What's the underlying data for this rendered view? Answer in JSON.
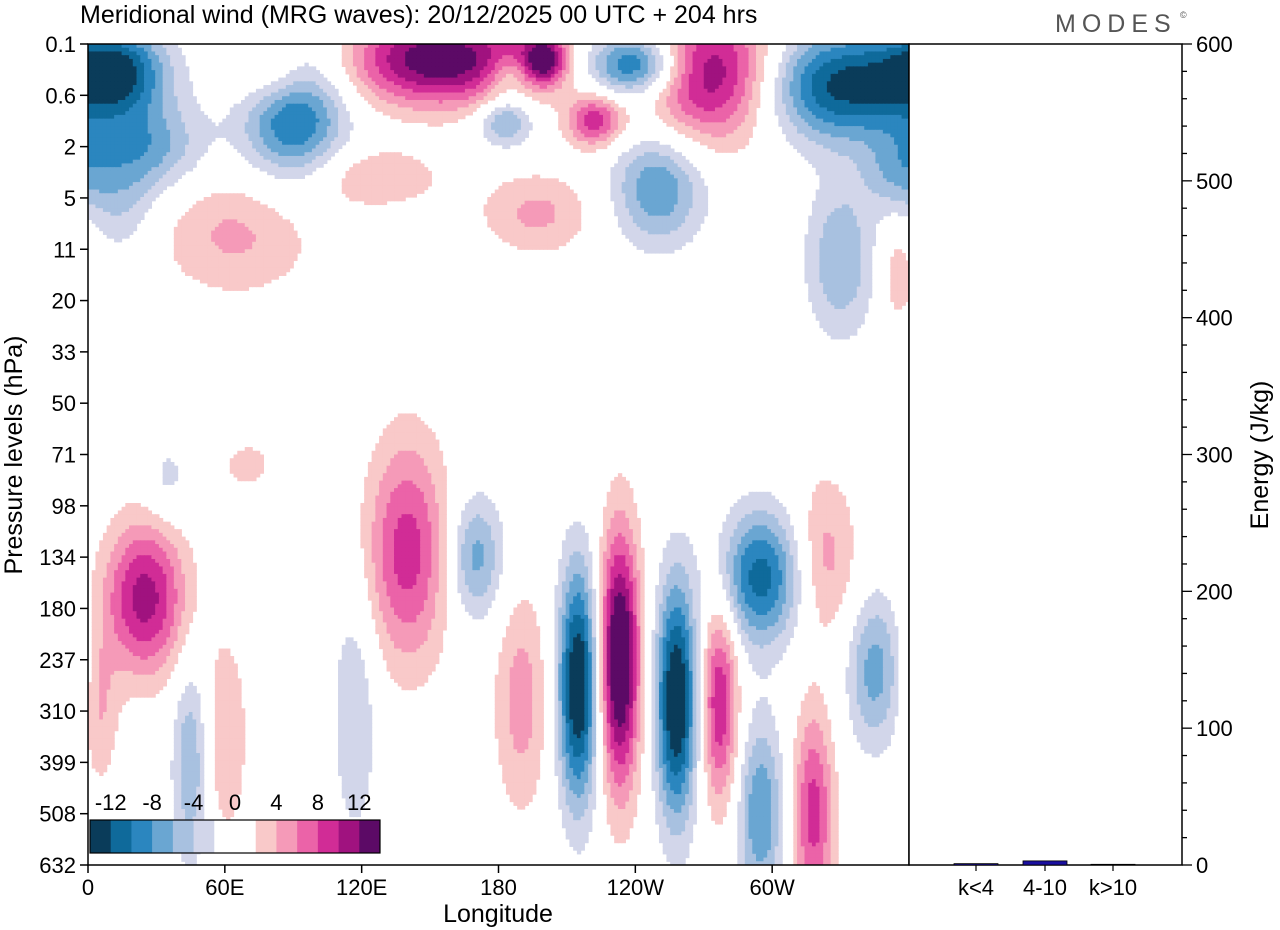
{
  "chart_data": {
    "type": "contour",
    "title": "Meridional wind (MRG waves):  20/12/2025  00 UTC  + 204 hrs",
    "brand": "MODES",
    "brand_mark": "©",
    "xlabel": "Longitude",
    "ylabel": "Pressure levels (hPa)",
    "x_ticks": [
      "0",
      "60E",
      "120E",
      "180",
      "120W",
      "60W"
    ],
    "x_tick_degrees": [
      0,
      60,
      120,
      180,
      240,
      300
    ],
    "xlim": [
      0,
      360
    ],
    "y_ticks": [
      "0.1",
      "0.6",
      "2",
      "5",
      "11",
      "20",
      "33",
      "50",
      "71",
      "98",
      "134",
      "180",
      "237",
      "310",
      "399",
      "508",
      "632"
    ],
    "colorbar": {
      "levels": [
        -12,
        -8,
        -4,
        0,
        4,
        8,
        12
      ],
      "labels": [
        "-12",
        "-8",
        "-4",
        "0",
        "4",
        "8",
        "12"
      ],
      "colors": [
        "#0a3c5a",
        "#0f6a9b",
        "#2b86bf",
        "#6aa6d2",
        "#a8c1e0",
        "#d2d6ea",
        "#ffffff",
        "#ffffff",
        "#f9c9c9",
        "#f59ab8",
        "#eb63a8",
        "#d12c96",
        "#a0127f",
        "#5c0a66"
      ]
    },
    "features": [
      {
        "lon": 155,
        "level": 0.3,
        "lon_width": 42,
        "level_width": 0.9,
        "value": 14
      },
      {
        "lon": 275,
        "level": 0.6,
        "lon_width": 30,
        "level_width": 1.3,
        "value": 13
      },
      {
        "lon": 85,
        "level": 0.55,
        "lon_width": 20,
        "level_width": 0.8,
        "value": 10
      },
      {
        "lon": 200,
        "level": 0.3,
        "lon_width": 10,
        "level_width": 0.5,
        "value": 11
      },
      {
        "lon": 222,
        "level": 1.5,
        "lon_width": 12,
        "level_width": 0.5,
        "value": 9
      },
      {
        "lon": 65,
        "level": 3.7,
        "lon_width": 35,
        "level_width": 1.2,
        "value": 4.5
      },
      {
        "lon": 125,
        "level": 2.6,
        "lon_width": 30,
        "level_width": 0.6,
        "value": 4
      },
      {
        "lon": 197,
        "level": 3.3,
        "lon_width": 25,
        "level_width": 0.8,
        "value": 4.5
      },
      {
        "lon": 12,
        "level": 0.5,
        "lon_width": 22,
        "level_width": 0.8,
        "value": -11
      },
      {
        "lon": 90,
        "level": 1.0,
        "lon_width": 22,
        "level_width": 1.5,
        "value": -14
      },
      {
        "lon": 330,
        "level": 0.8,
        "lon_width": 40,
        "level_width": 1.1,
        "value": -13
      },
      {
        "lon": 240,
        "level": 0.4,
        "lon_width": 20,
        "level_width": 0.6,
        "value": -12
      },
      {
        "lon": 183,
        "level": 1.5,
        "lon_width": 12,
        "level_width": 0.5,
        "value": -7
      },
      {
        "lon": 185,
        "level": 0.6,
        "lon_width": 10,
        "level_width": 0.4,
        "value": -4
      },
      {
        "lon": 25,
        "level": 2.0,
        "lon_width": 25,
        "level_width": 0.9,
        "value": -7
      },
      {
        "lon": 250,
        "level": 2.8,
        "lon_width": 20,
        "level_width": 1.1,
        "value": -8
      },
      {
        "lon": 330,
        "level": 4.2,
        "lon_width": 15,
        "level_width": 1.5,
        "value": -6
      },
      {
        "lon": 355,
        "level": 2.5,
        "lon_width": 15,
        "level_width": 0.8,
        "value": -5
      },
      {
        "lon": 15,
        "level": 3.2,
        "lon_width": 15,
        "level_width": 1.0,
        "value": -3.5
      },
      {
        "lon": 355,
        "level": 4.5,
        "lon_width": 8,
        "level_width": 1.0,
        "value": 3.5
      },
      {
        "lon": 25,
        "level": 10.8,
        "lon_width": 18,
        "level_width": 1.5,
        "value": 11
      },
      {
        "lon": 140,
        "level": 9.9,
        "lon_width": 18,
        "level_width": 2.2,
        "value": 9
      },
      {
        "lon": 190,
        "level": 12.8,
        "lon_width": 12,
        "level_width": 2.2,
        "value": 5
      },
      {
        "lon": 215,
        "level": 12.5,
        "lon_width": 9,
        "level_width": 2.3,
        "value": -15
      },
      {
        "lon": 233,
        "level": 12.0,
        "lon_width": 9,
        "level_width": 2.5,
        "value": 16
      },
      {
        "lon": 258,
        "level": 12.8,
        "lon_width": 9,
        "level_width": 2.3,
        "value": -15
      },
      {
        "lon": 277,
        "level": 12.8,
        "lon_width": 8,
        "level_width": 2.0,
        "value": 10
      },
      {
        "lon": 295,
        "level": 10.4,
        "lon_width": 18,
        "level_width": 1.3,
        "value": -11
      },
      {
        "lon": 323,
        "level": 10.0,
        "lon_width": 14,
        "level_width": 1.6,
        "value": 5
      },
      {
        "lon": 345,
        "level": 12.2,
        "lon_width": 12,
        "level_width": 1.5,
        "value": -7
      },
      {
        "lon": 170,
        "level": 10.0,
        "lon_width": 12,
        "level_width": 1.2,
        "value": -7
      },
      {
        "lon": 60,
        "level": 13.5,
        "lon_width": 10,
        "level_width": 2.0,
        "value": 4
      },
      {
        "lon": 45,
        "level": 14.0,
        "lon_width": 8,
        "level_width": 2.0,
        "value": -6
      },
      {
        "lon": 117,
        "level": 13.0,
        "lon_width": 10,
        "level_width": 2.5,
        "value": -4
      },
      {
        "lon": 295,
        "level": 15.0,
        "lon_width": 10,
        "level_width": 1.8,
        "value": -8
      },
      {
        "lon": 318,
        "level": 15.0,
        "lon_width": 9,
        "level_width": 2.0,
        "value": 9
      },
      {
        "lon": 5,
        "level": 13.0,
        "lon_width": 8,
        "level_width": 1.5,
        "value": 4
      },
      {
        "lon": 35,
        "level": 8.5,
        "lon_width": 10,
        "level_width": 0.8,
        "value": -3
      },
      {
        "lon": 70,
        "level": 8.2,
        "lon_width": 12,
        "level_width": 0.5,
        "value": 3
      }
    ],
    "energy_panel": {
      "ylabel": "Energy (J/kg)",
      "ylim": [
        0,
        600
      ],
      "y_ticks": [
        0,
        100,
        200,
        300,
        400,
        500,
        600
      ],
      "categories": [
        "k<4",
        "4-10",
        "k>10"
      ],
      "values": [
        1,
        3,
        0.5
      ],
      "bar_color": "#1a0fa0"
    }
  }
}
